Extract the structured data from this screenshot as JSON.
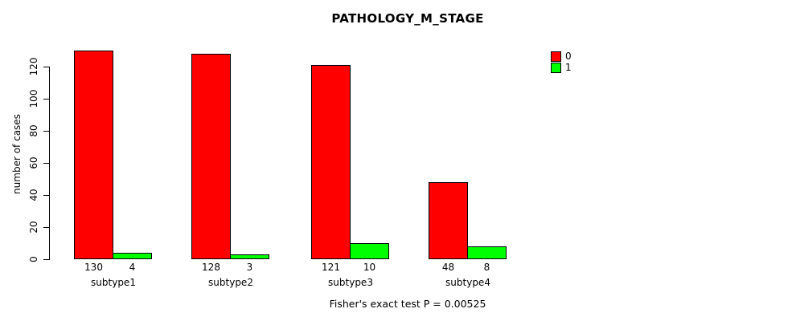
{
  "chart_data": {
    "type": "bar",
    "title": "PATHOLOGY_M_STAGE",
    "ylabel": "number of cases",
    "footer": "Fisher's exact test P = 0.00525",
    "categories": [
      "subtype1",
      "subtype2",
      "subtype3",
      "subtype4"
    ],
    "series": [
      {
        "name": "0",
        "color": "#ff0000",
        "values": [
          130,
          128,
          121,
          48
        ]
      },
      {
        "name": "1",
        "color": "#00ff00",
        "values": [
          4,
          3,
          10,
          8
        ]
      }
    ],
    "yticks": [
      0,
      20,
      40,
      60,
      80,
      100,
      120
    ],
    "ylim": [
      0,
      130
    ],
    "grid": false,
    "legend_position": "top-right",
    "background_color": "#ffffff",
    "axis_color": "#000000"
  }
}
